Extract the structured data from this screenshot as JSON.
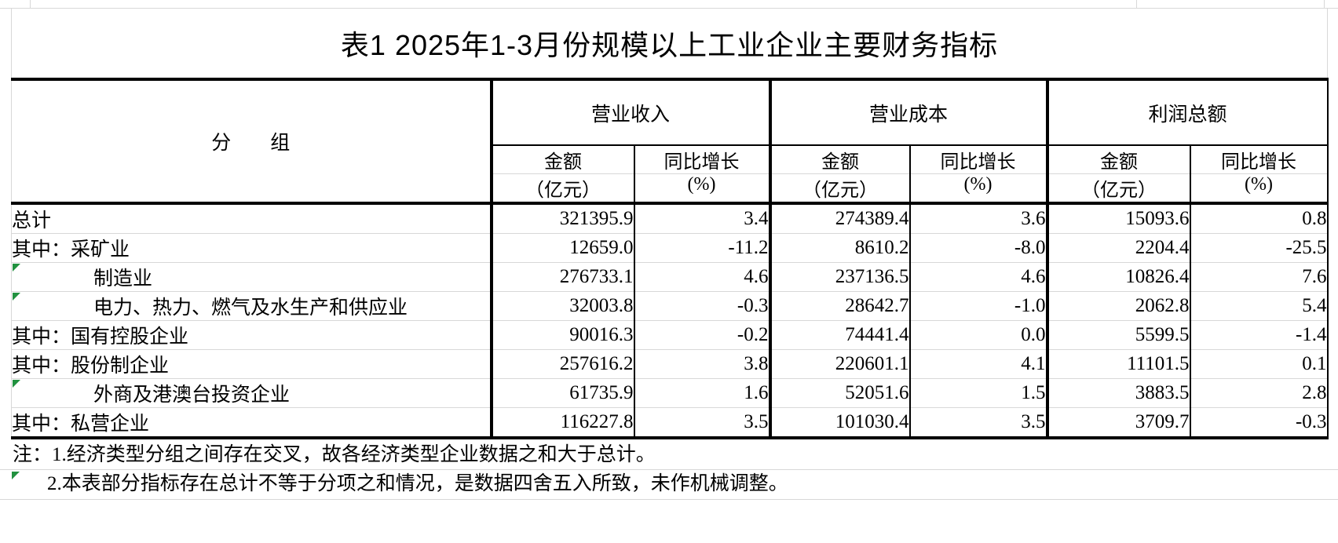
{
  "page": {
    "title": "表1 2025年1-3月份规模以上工业企业主要财务指标"
  },
  "table": {
    "group_col_header": "分　　组",
    "groups": [
      {
        "label": "营业收入"
      },
      {
        "label": "营业成本"
      },
      {
        "label": "利润总额"
      }
    ],
    "sub": {
      "amount": "金额",
      "amount_unit": "（亿元）",
      "growth": "同比增长",
      "growth_unit": "(%)"
    },
    "rows": [
      {
        "label": "总计",
        "indent": false,
        "flag": false,
        "values": [
          "321395.9",
          "3.4",
          "274389.4",
          "3.6",
          "15093.6",
          "0.8"
        ]
      },
      {
        "label": "其中：采矿业",
        "indent": false,
        "flag": false,
        "values": [
          "12659.0",
          "-11.2",
          "8610.2",
          "-8.0",
          "2204.4",
          "-25.5"
        ]
      },
      {
        "label": "制造业",
        "indent": true,
        "flag": true,
        "values": [
          "276733.1",
          "4.6",
          "237136.5",
          "4.6",
          "10826.4",
          "7.6"
        ]
      },
      {
        "label": "电力、热力、燃气及水生产和供应业",
        "indent": true,
        "flag": true,
        "values": [
          "32003.8",
          "-0.3",
          "28642.7",
          "-1.0",
          "2062.8",
          "5.4"
        ]
      },
      {
        "label": "其中：国有控股企业",
        "indent": false,
        "flag": false,
        "values": [
          "90016.3",
          "-0.2",
          "74441.4",
          "0.0",
          "5599.5",
          "-1.4"
        ]
      },
      {
        "label": "其中：股份制企业",
        "indent": false,
        "flag": false,
        "values": [
          "257616.2",
          "3.8",
          "220601.1",
          "4.1",
          "11101.5",
          "0.1"
        ]
      },
      {
        "label": "外商及港澳台投资企业",
        "indent": true,
        "flag": true,
        "values": [
          "61735.9",
          "1.6",
          "52051.6",
          "1.5",
          "3883.5",
          "2.8"
        ]
      },
      {
        "label": "其中：私营企业",
        "indent": false,
        "flag": false,
        "values": [
          "116227.8",
          "3.5",
          "101030.4",
          "3.5",
          "3709.7",
          "-0.3"
        ]
      }
    ]
  },
  "notes": {
    "line1": "注：1.经济类型分组之间存在交叉，故各经济类型企业数据之和大于总计。",
    "line2": "2.本表部分指标存在总计不等于分项之和情况，是数据四舍五入所致，未作机械调整。"
  },
  "colors": {
    "grid": "#d8d8d8",
    "border": "#000000",
    "flag_green": "#21913f"
  }
}
